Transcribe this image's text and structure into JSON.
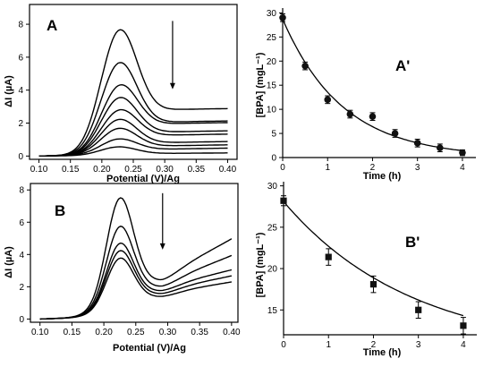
{
  "chart_data": [
    {
      "panel": "A",
      "type": "line",
      "xlabel": "Potential (V)/Ag",
      "ylabel": "ΔI (µA)",
      "xlim": [
        0.085,
        0.415
      ],
      "ylim": [
        -0.2,
        9.2
      ],
      "xticks": [
        0.1,
        0.15,
        0.2,
        0.25,
        0.3,
        0.35,
        0.4
      ],
      "xtick_labels": [
        "0.10",
        "0.15",
        "0.20",
        "0.25",
        "0.30",
        "0.35",
        "0.40"
      ],
      "yticks": [
        0,
        2,
        4,
        6,
        8
      ],
      "ytick_labels": [
        "0",
        "2",
        "4",
        "6",
        "8"
      ],
      "grid": false,
      "annotation": "arrow pointing down (decreasing current with time)",
      "series": [
        {
          "peak": 8.35,
          "tail": 2.7
        },
        {
          "peak": 6.15,
          "tail": 1.95
        },
        {
          "peak": 4.75,
          "tail": 1.85
        },
        {
          "peak": 3.85,
          "tail": 1.35
        },
        {
          "peak": 3.05,
          "tail": 1.15
        },
        {
          "peak": 2.35,
          "tail": 0.7
        },
        {
          "peak": 1.75,
          "tail": 0.5
        },
        {
          "peak": 1.05,
          "tail": 0.3
        },
        {
          "peak": 0.55,
          "tail": 0.1
        }
      ]
    },
    {
      "panel": "A'",
      "type": "scatter",
      "xlabel": "Time (h)",
      "ylabel": "[BPA] (mgL⁻¹)",
      "xlim": [
        0,
        4.3
      ],
      "ylim": [
        0,
        31
      ],
      "xticks": [
        0,
        1,
        2,
        3,
        4
      ],
      "xtick_labels": [
        "0",
        "1",
        "2",
        "3",
        "4"
      ],
      "yticks": [
        0,
        5,
        10,
        15,
        20,
        25,
        30
      ],
      "ytick_labels": [
        "0",
        "5",
        "10",
        "15",
        "20",
        "25",
        "30"
      ],
      "grid": false,
      "x": [
        0,
        0.5,
        1.0,
        1.5,
        2.0,
        2.5,
        3.0,
        3.5,
        4.0
      ],
      "y": [
        29,
        19,
        12,
        9,
        8.5,
        5,
        3,
        2,
        1
      ],
      "errors": [
        0.8,
        0.8,
        0.8,
        0.8,
        0.8,
        0.8,
        0.8,
        0.8,
        0.6
      ],
      "fit": {
        "model": "exponential decay",
        "a": 28.7,
        "k": 0.75
      }
    },
    {
      "panel": "B",
      "type": "line",
      "xlabel": "Potential (V)/Ag",
      "ylabel": "ΔI (µA)",
      "xlim": [
        0.085,
        0.41
      ],
      "ylim": [
        -0.2,
        8.4
      ],
      "xticks": [
        0.1,
        0.15,
        0.2,
        0.25,
        0.3,
        0.35,
        0.4
      ],
      "xtick_labels": [
        "0.10",
        "0.15",
        "0.20",
        "0.25",
        "0.30",
        "0.35",
        "0.40"
      ],
      "yticks": [
        0,
        2,
        4,
        6,
        8
      ],
      "ytick_labels": [
        "0",
        "2",
        "4",
        "6",
        "8"
      ],
      "grid": false,
      "annotation": "arrow pointing down (decreasing current with time)",
      "series": [
        {
          "peak": 7.85,
          "valley": 3.7,
          "tail": 5.6
        },
        {
          "peak": 6.0,
          "valley": 3.05,
          "tail": 4.4
        },
        {
          "peak": 4.9,
          "valley": 2.6,
          "tail": 3.4
        },
        {
          "peak": 4.4,
          "valley": 2.3,
          "tail": 2.95
        },
        {
          "peak": 3.9,
          "valley": 2.0,
          "tail": 2.5
        }
      ]
    },
    {
      "panel": "B'",
      "type": "scatter",
      "xlabel": "Time (h)",
      "ylabel": "[BPA] (mgL⁻¹)",
      "xlim": [
        0,
        4.3
      ],
      "ylim": [
        12,
        30.5
      ],
      "xticks": [
        0,
        1,
        2,
        3,
        4
      ],
      "xtick_labels": [
        "0",
        "1",
        "2",
        "3",
        "4"
      ],
      "yticks": [
        15,
        20,
        25,
        30
      ],
      "ytick_labels": [
        "15",
        "20",
        "25",
        "30"
      ],
      "grid": false,
      "x": [
        0,
        1,
        2,
        3,
        4
      ],
      "y": [
        28.2,
        21.4,
        18.1,
        15.0,
        13.1
      ],
      "errors": [
        0.6,
        1.0,
        1.0,
        1.0,
        1.0
      ],
      "fit": {
        "model": "exponential decay to offset",
        "c": 9.8,
        "a": 18.3,
        "k": 0.35
      }
    }
  ]
}
